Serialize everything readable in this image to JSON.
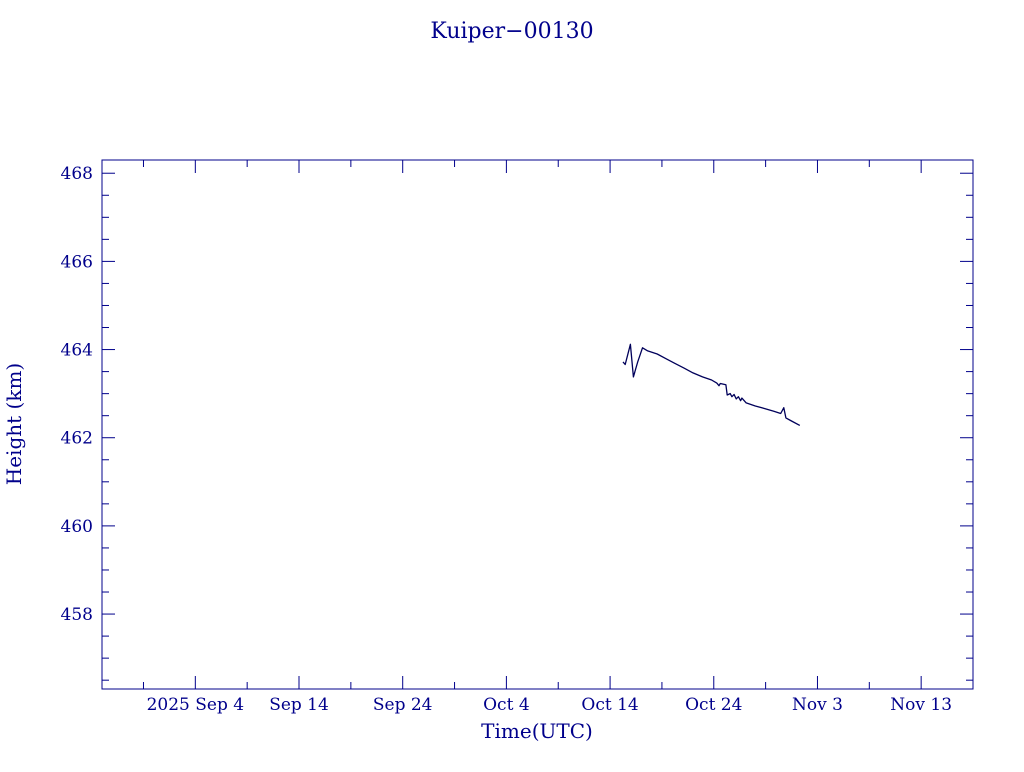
{
  "colors": {
    "axis": "#00008b",
    "text": "#00008b",
    "line": "#00005a",
    "background": "#ffffff"
  },
  "chart_data": {
    "type": "line",
    "title": "Kuiper−00130",
    "xlabel": "Time(UTC)",
    "ylabel": "Height (km)",
    "x_axis": {
      "type": "date",
      "range": [
        "2025-08-26",
        "2025-11-18"
      ],
      "major_ticks": [
        {
          "date": "2025-09-04",
          "label": "2025 Sep  4"
        },
        {
          "date": "2025-09-14",
          "label": "Sep 14"
        },
        {
          "date": "2025-09-24",
          "label": "Sep 24"
        },
        {
          "date": "2025-10-04",
          "label": "Oct  4"
        },
        {
          "date": "2025-10-14",
          "label": "Oct 14"
        },
        {
          "date": "2025-10-24",
          "label": "Oct 24"
        },
        {
          "date": "2025-11-03",
          "label": "Nov  3"
        },
        {
          "date": "2025-11-13",
          "label": "Nov 13"
        }
      ],
      "minor_tick_days": 5
    },
    "y_axis": {
      "range": [
        456.3,
        468.3
      ],
      "major_ticks": [
        458,
        460,
        462,
        464,
        466,
        468
      ],
      "tick_labels": [
        "458",
        "460",
        "462",
        "464",
        "466",
        "468"
      ],
      "minor_step": 0.5
    },
    "grid": false,
    "series": [
      {
        "points": [
          {
            "x": "2025-10-15T06:00",
            "y": 463.72
          },
          {
            "x": "2025-10-15T11:00",
            "y": 463.66
          },
          {
            "x": "2025-10-15T23:00",
            "y": 464.12
          },
          {
            "x": "2025-10-16T06:00",
            "y": 463.38
          },
          {
            "x": "2025-10-16T16:00",
            "y": 463.72
          },
          {
            "x": "2025-10-17T03:00",
            "y": 464.04
          },
          {
            "x": "2025-10-17T15:00",
            "y": 463.97
          },
          {
            "x": "2025-10-18T13:00",
            "y": 463.9
          },
          {
            "x": "2025-10-19T10:00",
            "y": 463.79
          },
          {
            "x": "2025-10-20T05:00",
            "y": 463.69
          },
          {
            "x": "2025-10-21T03:00",
            "y": 463.58
          },
          {
            "x": "2025-10-22T00:00",
            "y": 463.47
          },
          {
            "x": "2025-10-22T22:00",
            "y": 463.38
          },
          {
            "x": "2025-10-23T19:00",
            "y": 463.31
          },
          {
            "x": "2025-10-24T07:00",
            "y": 463.24
          },
          {
            "x": "2025-10-24T12:00",
            "y": 463.18
          },
          {
            "x": "2025-10-24T15:00",
            "y": 463.23
          },
          {
            "x": "2025-10-25T04:00",
            "y": 463.2
          },
          {
            "x": "2025-10-25T07:00",
            "y": 462.97
          },
          {
            "x": "2025-10-25T14:00",
            "y": 463.0
          },
          {
            "x": "2025-10-25T18:00",
            "y": 462.93
          },
          {
            "x": "2025-10-25T23:00",
            "y": 462.98
          },
          {
            "x": "2025-10-26T04:00",
            "y": 462.88
          },
          {
            "x": "2025-10-26T09:00",
            "y": 462.93
          },
          {
            "x": "2025-10-26T14:00",
            "y": 462.84
          },
          {
            "x": "2025-10-26T17:00",
            "y": 462.9
          },
          {
            "x": "2025-10-27T03:00",
            "y": 462.79
          },
          {
            "x": "2025-10-28T00:00",
            "y": 462.72
          },
          {
            "x": "2025-10-28T22:00",
            "y": 462.66
          },
          {
            "x": "2025-10-29T19:00",
            "y": 462.6
          },
          {
            "x": "2025-10-30T11:00",
            "y": 462.55
          },
          {
            "x": "2025-10-30T18:00",
            "y": 462.68
          },
          {
            "x": "2025-10-30T23:00",
            "y": 462.45
          },
          {
            "x": "2025-10-31T12:00",
            "y": 462.38
          },
          {
            "x": "2025-11-01T07:00",
            "y": 462.28
          }
        ]
      }
    ]
  }
}
